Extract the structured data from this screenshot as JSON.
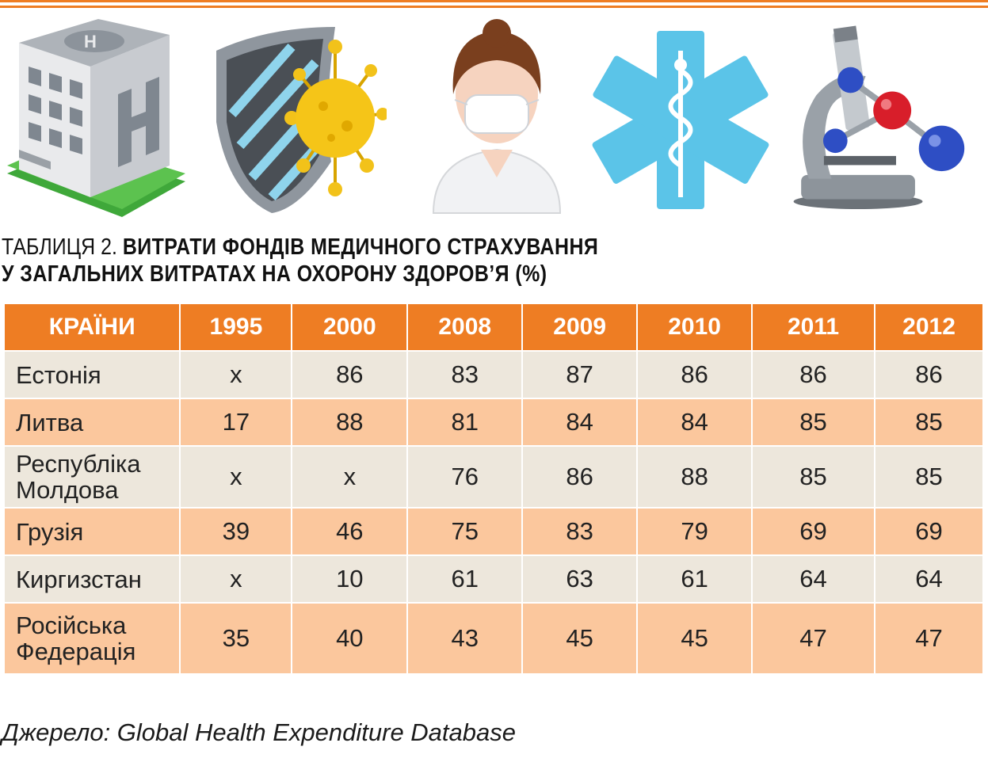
{
  "title": {
    "lead": "ТАБЛИЦЯ 2.",
    "line1": "ВИТРАТИ ФОНДІВ МЕДИЧНОГО СТРАХУВАННЯ",
    "line2": "У ЗАГАЛЬНИХ ВИТРАТАХ НА ОХОРОНУ ЗДОРОВ’Я (%)"
  },
  "icons": [
    "hospital-building-icon",
    "virus-shield-icon",
    "nurse-mask-icon",
    "star-of-life-icon",
    "microscope-molecule-icon"
  ],
  "colors": {
    "accent": "#ee7d23",
    "row_light": "#ede7dc",
    "row_peach": "#fbc79d"
  },
  "table": {
    "headers": [
      "КРАЇНИ",
      "1995",
      "2000",
      "2008",
      "2009",
      "2010",
      "2011",
      "2012"
    ],
    "rows": [
      {
        "country": "Естонія",
        "values": [
          "x",
          "86",
          "83",
          "87",
          "86",
          "86",
          "86"
        ]
      },
      {
        "country": "Литва",
        "values": [
          "17",
          "88",
          "81",
          "84",
          "84",
          "85",
          "85"
        ]
      },
      {
        "country": "Республіка Молдова",
        "values": [
          "x",
          "x",
          "76",
          "86",
          "88",
          "85",
          "85"
        ]
      },
      {
        "country": "Грузія",
        "values": [
          "39",
          "46",
          "75",
          "83",
          "79",
          "69",
          "69"
        ]
      },
      {
        "country": "Киргизстан",
        "values": [
          "x",
          "10",
          "61",
          "63",
          "61",
          "64",
          "64"
        ]
      },
      {
        "country": "Російська Федерація",
        "values": [
          "35",
          "40",
          "43",
          "45",
          "45",
          "47",
          "47"
        ]
      }
    ]
  },
  "source": "Джерело: Global Health Expenditure Database"
}
